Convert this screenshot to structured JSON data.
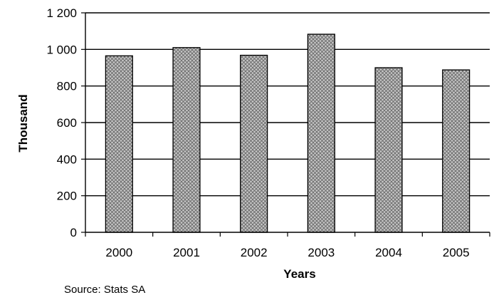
{
  "chart_data": {
    "type": "bar",
    "categories": [
      "2000",
      "2001",
      "2002",
      "2003",
      "2004",
      "2005"
    ],
    "values": [
      965,
      1010,
      968,
      1083,
      900,
      888
    ],
    "xlabel": "Years",
    "ylabel": "Thousand",
    "ylim": [
      0,
      1200
    ],
    "yticks": [
      0,
      200,
      400,
      600,
      800,
      1000,
      1200
    ],
    "ytick_labels": [
      "0",
      "200",
      "400",
      "600",
      "800",
      "1 000",
      "1 200"
    ],
    "grid": true,
    "legend": "none",
    "bar_pattern": "crosshatch",
    "colors": {
      "bar_fill": "#c8c8c8",
      "bar_hatch": "#6e6e6e",
      "bar_edge": "#000000",
      "grid": "#000000"
    }
  },
  "source": "Source: Stats SA"
}
